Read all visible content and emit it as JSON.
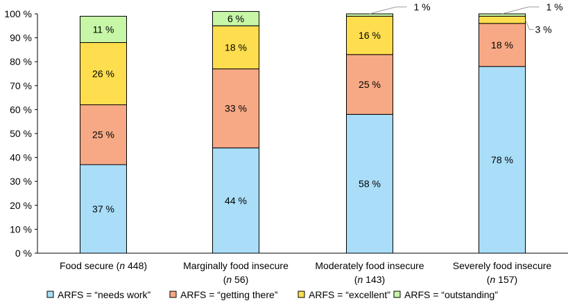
{
  "chart_data": {
    "type": "bar",
    "stacked": true,
    "title": "",
    "xlabel": "",
    "ylabel": "",
    "ylim": [
      0,
      100
    ],
    "yticks": [
      "0 %",
      "10 %",
      "20 %",
      "30 %",
      "40 %",
      "50 %",
      "60 %",
      "70 %",
      "80 %",
      "90 %",
      "100 %"
    ],
    "categories": [
      {
        "line1": "Food secure (",
        "italic": "n",
        "n": " 448)",
        "line2": ""
      },
      {
        "line1": "Marginally food insecure",
        "italic": "n",
        "n": " 56)",
        "line2": "("
      },
      {
        "line1": "Moderately food insecure",
        "italic": "n",
        "n": " 143)",
        "line2": "("
      },
      {
        "line1": "Severely food insecure",
        "italic": "n",
        "n": " 157)",
        "line2": "("
      }
    ],
    "series": [
      {
        "name": "ARFS = “needs work”",
        "color": "#a9ddf8",
        "values": [
          37,
          44,
          58,
          78
        ],
        "labels": [
          "37 %",
          "44 %",
          "58 %",
          "78 %"
        ]
      },
      {
        "name": "ARFS = “getting there”",
        "color": "#f7a985",
        "values": [
          25,
          33,
          25,
          18
        ],
        "labels": [
          "25 %",
          "33 %",
          "25 %",
          "18 %"
        ]
      },
      {
        "name": "ARFS = “excellent”",
        "color": "#fede4e",
        "values": [
          26,
          18,
          16,
          3
        ],
        "labels": [
          "26 %",
          "18 %",
          "16 %",
          "3 %"
        ]
      },
      {
        "name": "ARFS = “outstanding”",
        "color": "#c6f6a6",
        "values": [
          11,
          6,
          1,
          1
        ],
        "labels": [
          "11 %",
          "6 %",
          "1 %",
          "1 %"
        ]
      }
    ],
    "legend_position": "bottom"
  }
}
